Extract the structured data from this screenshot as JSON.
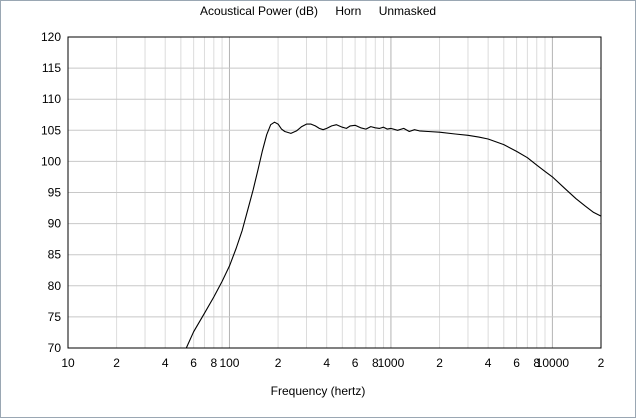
{
  "window": {
    "title_parts": [
      "Acoustical Power (dB)",
      "Horn",
      "Unmasked"
    ]
  },
  "chart_data": {
    "type": "line",
    "title": "Acoustical Power (dB)   Horn   Unmasked",
    "xlabel": "Frequency (hertz)",
    "ylabel": "",
    "x_scale": "log",
    "xlim": [
      10,
      20000
    ],
    "ylim": [
      70,
      120
    ],
    "grid": true,
    "y_ticks": [
      120,
      115,
      110,
      105,
      100,
      95,
      90,
      85,
      80,
      75,
      70
    ],
    "x_tick_labels": [
      {
        "x": 10,
        "label": "10"
      },
      {
        "x": 20,
        "label": "2"
      },
      {
        "x": 40,
        "label": "4"
      },
      {
        "x": 60,
        "label": "6"
      },
      {
        "x": 80,
        "label": "8"
      },
      {
        "x": 100,
        "label": "100"
      },
      {
        "x": 200,
        "label": "2"
      },
      {
        "x": 400,
        "label": "4"
      },
      {
        "x": 600,
        "label": "6"
      },
      {
        "x": 800,
        "label": "8"
      },
      {
        "x": 1000,
        "label": "1000"
      },
      {
        "x": 2000,
        "label": "2"
      },
      {
        "x": 4000,
        "label": "4"
      },
      {
        "x": 6000,
        "label": "6"
      },
      {
        "x": 8000,
        "label": "8"
      },
      {
        "x": 10000,
        "label": "10000"
      },
      {
        "x": 20000,
        "label": "2"
      }
    ],
    "series": [
      {
        "color": "#000000",
        "x": [
          54,
          60,
          70,
          80,
          90,
          100,
          110,
          120,
          130,
          140,
          150,
          160,
          170,
          180,
          190,
          200,
          210,
          220,
          240,
          260,
          280,
          300,
          320,
          340,
          360,
          380,
          400,
          430,
          460,
          500,
          530,
          560,
          600,
          650,
          700,
          750,
          800,
          850,
          900,
          950,
          1000,
          1100,
          1200,
          1300,
          1400,
          1500,
          1700,
          2000,
          2500,
          3000,
          3500,
          4000,
          5000,
          6000,
          7000,
          8000,
          9000,
          10000,
          12000,
          14000,
          16000,
          18000,
          20000
        ],
        "y": [
          70,
          72.6,
          75.6,
          78.2,
          80.7,
          83.2,
          86.0,
          88.9,
          92.3,
          95.4,
          98.6,
          101.7,
          104.3,
          105.9,
          106.3,
          106.0,
          105.2,
          104.8,
          104.5,
          104.9,
          105.6,
          106.0,
          106.0,
          105.7,
          105.3,
          105.1,
          105.3,
          105.7,
          105.9,
          105.5,
          105.3,
          105.7,
          105.8,
          105.4,
          105.2,
          105.6,
          105.4,
          105.3,
          105.5,
          105.2,
          105.3,
          105.0,
          105.3,
          104.8,
          105.1,
          104.9,
          104.8,
          104.7,
          104.4,
          104.2,
          103.9,
          103.6,
          102.7,
          101.6,
          100.6,
          99.4,
          98.4,
          97.5,
          95.6,
          94.0,
          92.8,
          91.8,
          91.2
        ]
      }
    ]
  }
}
